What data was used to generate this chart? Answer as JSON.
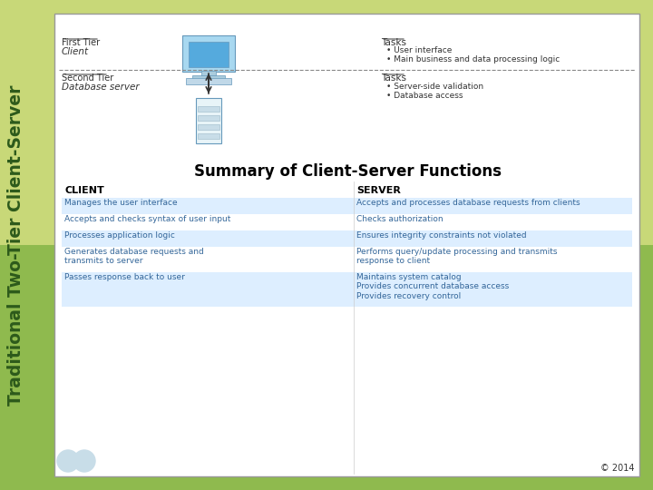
{
  "bg_color": "#8fba4e",
  "bg_color_top": "#c8d878",
  "panel_bg": "#ffffff",
  "panel_border": "#999999",
  "title_text": "Traditional Two-Tier Client-Server",
  "title_color": "#2d5a1b",
  "copyright": "© 2014",
  "diagram_title": "Summary of Client-Server Functions",
  "first_tier_label": "First Tier",
  "first_tier_sub": "Client",
  "second_tier_label": "Second Tier",
  "second_tier_sub": "Database server",
  "tasks1_label": "Tasks",
  "tasks1_items": [
    "User interface",
    "Main business and data processing logic"
  ],
  "tasks2_label": "Tasks",
  "tasks2_items": [
    "Server-side validation",
    "Database access"
  ],
  "col1_header": "CLIENT",
  "col2_header": "SERVER",
  "table_rows": [
    [
      "Manages the user interface",
      "Accepts and processes database requests from clients"
    ],
    [
      "Accepts and checks syntax of user input",
      "Checks authorization"
    ],
    [
      "Processes application logic",
      "Ensures integrity constraints not violated"
    ],
    [
      "Generates database requests and\ntransmits to server",
      "Performs query/update processing and transmits\nresponse to client"
    ],
    [
      "Passes response back to user",
      "Maintains system catalog\nProvides concurrent database access\nProvides recovery control"
    ]
  ],
  "row_colors": [
    "#ddeeff",
    "#ffffff",
    "#ddeeff",
    "#ffffff",
    "#ddeeff"
  ],
  "table_text_color": "#336699",
  "header_color": "#000000",
  "dashed_line_color": "#888888",
  "tier_label_color": "#333333",
  "tier_sub_color": "#333333"
}
